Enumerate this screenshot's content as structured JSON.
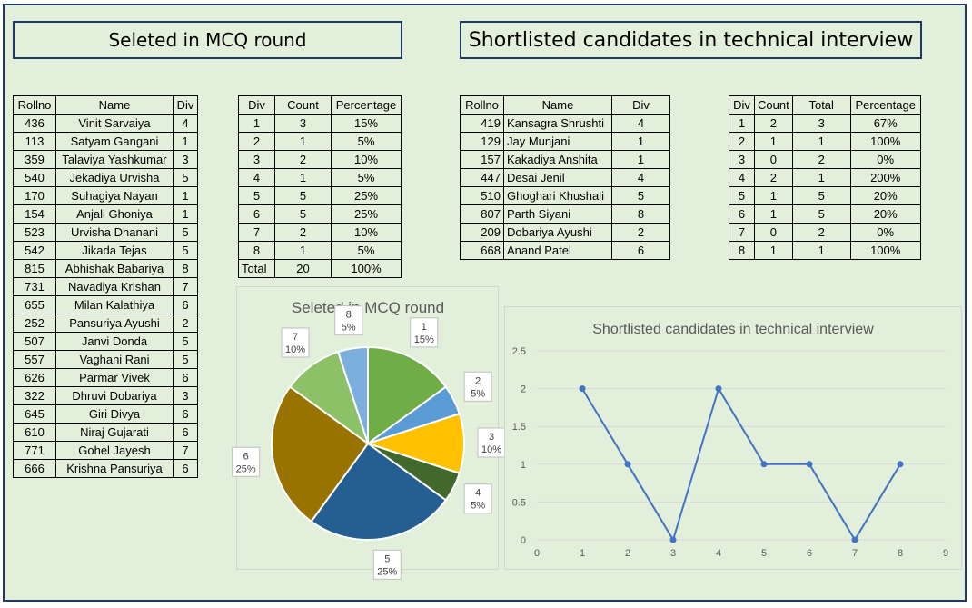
{
  "titles": {
    "mcq": "Seleted in MCQ round",
    "technical": "Shortlisted candidates in technical interview"
  },
  "mcq_table": {
    "headers": [
      "Rollno",
      "Name",
      "Div"
    ],
    "rows": [
      [
        "436",
        "Vinit Sarvaiya",
        "4"
      ],
      [
        "113",
        "Satyam Gangani",
        "1"
      ],
      [
        "359",
        "Talaviya Yashkumar",
        "3"
      ],
      [
        "540",
        "Jekadiya Urvisha",
        "5"
      ],
      [
        "170",
        "Suhagiya Nayan",
        "1"
      ],
      [
        "154",
        "Anjali Ghoniya",
        "1"
      ],
      [
        "523",
        "Urvisha Dhanani",
        "5"
      ],
      [
        "542",
        "Jikada Tejas",
        "5"
      ],
      [
        "815",
        "Abhishak Babariya",
        "8"
      ],
      [
        "731",
        "Navadiya Krishan",
        "7"
      ],
      [
        "655",
        "Milan Kalathiya",
        "6"
      ],
      [
        "252",
        "Pansuriya Ayushi",
        "2"
      ],
      [
        "507",
        "Janvi Donda",
        "5"
      ],
      [
        "557",
        "Vaghani Rani",
        "5"
      ],
      [
        "626",
        "Parmar Vivek",
        "6"
      ],
      [
        "322",
        "Dhruvi Dobariya",
        "3"
      ],
      [
        "645",
        "Giri Divya",
        "6"
      ],
      [
        "610",
        "Niraj Gujarati",
        "6"
      ],
      [
        "771",
        "Gohel Jayesh",
        "7"
      ],
      [
        "666",
        "Krishna Pansuriya",
        "6"
      ]
    ]
  },
  "count_table": {
    "headers": [
      "Div",
      "Count",
      "Percentage"
    ],
    "rows": [
      [
        "1",
        "3",
        "15%"
      ],
      [
        "2",
        "1",
        "5%"
      ],
      [
        "3",
        "2",
        "10%"
      ],
      [
        "4",
        "1",
        "5%"
      ],
      [
        "5",
        "5",
        "25%"
      ],
      [
        "6",
        "5",
        "25%"
      ],
      [
        "7",
        "2",
        "10%"
      ],
      [
        "8",
        "1",
        "5%"
      ],
      [
        "Total",
        "20",
        "100%"
      ]
    ]
  },
  "tech_table": {
    "headers": [
      "Rollno",
      "Name",
      "Div"
    ],
    "rows": [
      [
        "419",
        "Kansagra Shrushti",
        "4"
      ],
      [
        "129",
        "Jay Munjani",
        "1"
      ],
      [
        "157",
        "Kakadiya Anshita",
        "1"
      ],
      [
        "447",
        "Desai Jenil",
        "4"
      ],
      [
        "510",
        "Ghoghari Khushali",
        "5"
      ],
      [
        "807",
        "Parth Siyani",
        "8"
      ],
      [
        "209",
        "Dobariya Ayushi",
        "2"
      ],
      [
        "668",
        "Anand Patel",
        "6"
      ]
    ]
  },
  "ratio_table": {
    "headers": [
      "Div",
      "Count",
      "Total",
      "Percentage"
    ],
    "rows": [
      [
        "1",
        "2",
        "3",
        "67%"
      ],
      [
        "2",
        "1",
        "1",
        "100%"
      ],
      [
        "3",
        "0",
        "2",
        "0%"
      ],
      [
        "4",
        "2",
        "1",
        "200%"
      ],
      [
        "5",
        "1",
        "5",
        "20%"
      ],
      [
        "6",
        "1",
        "5",
        "20%"
      ],
      [
        "7",
        "0",
        "2",
        "0%"
      ],
      [
        "8",
        "1",
        "1",
        "100%"
      ]
    ]
  },
  "chart_data": [
    {
      "type": "pie",
      "title": "Seleted in MCQ round",
      "categories": [
        "1",
        "2",
        "3",
        "4",
        "5",
        "6",
        "7",
        "8"
      ],
      "values": [
        3,
        1,
        2,
        1,
        5,
        5,
        2,
        1
      ],
      "labels": [
        "15%",
        "5%",
        "10%",
        "5%",
        "25%",
        "25%",
        "10%",
        "5%"
      ],
      "colors": [
        "#70ad47",
        "#5b9bd5",
        "#ffc000",
        "#43682b",
        "#255e91",
        "#997300",
        "#8cc168",
        "#7cafdd"
      ]
    },
    {
      "type": "scatter",
      "title": "Shortlisted candidates in technical interview",
      "x": [
        1,
        2,
        3,
        4,
        5,
        6,
        7,
        8
      ],
      "y": [
        2,
        1,
        0,
        2,
        1,
        1,
        0,
        1
      ],
      "xlim": [
        0,
        9
      ],
      "ylim": [
        0,
        2.5
      ],
      "xticks": [
        "0",
        "1",
        "2",
        "3",
        "4",
        "5",
        "6",
        "7",
        "8",
        "9"
      ],
      "yticks": [
        "0",
        "0.5",
        "1",
        "1.5",
        "2",
        "2.5"
      ],
      "grid": true,
      "color": "#4472c4"
    }
  ]
}
